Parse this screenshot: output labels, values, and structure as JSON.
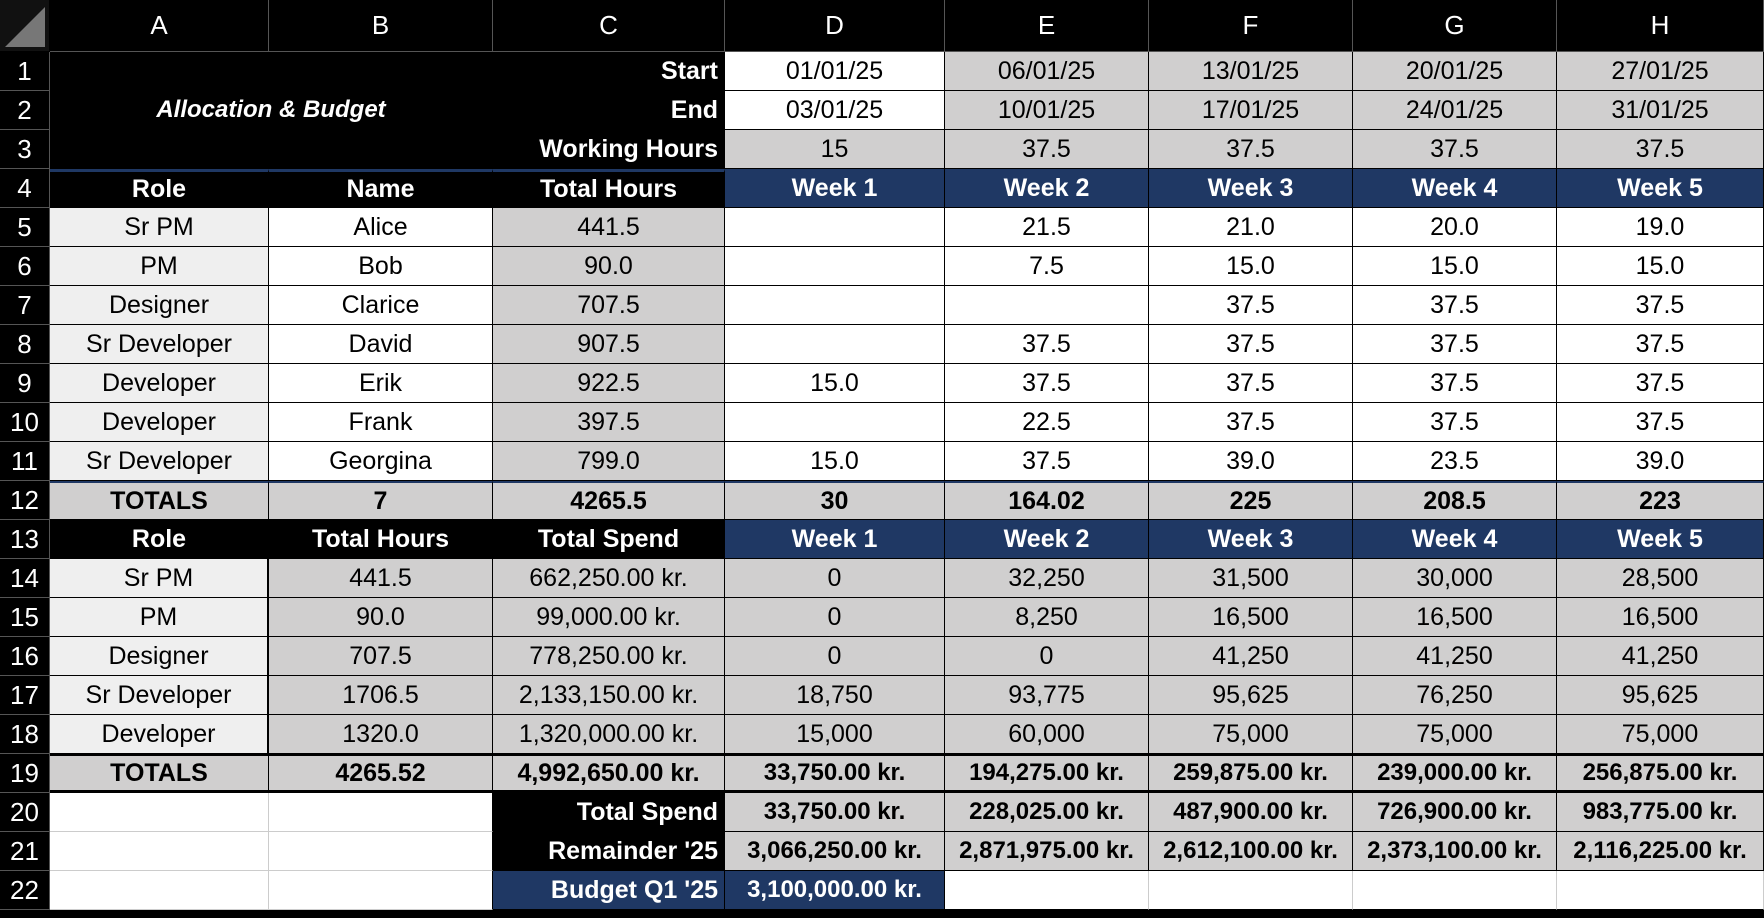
{
  "columns": [
    "A",
    "B",
    "C",
    "D",
    "E",
    "F",
    "G",
    "H"
  ],
  "rows": [
    "1",
    "2",
    "3",
    "4",
    "5",
    "6",
    "7",
    "8",
    "9",
    "10",
    "11",
    "12",
    "13",
    "14",
    "15",
    "16",
    "17",
    "18",
    "19",
    "20",
    "21",
    "22"
  ],
  "title": "Allocation & Budget",
  "labels": {
    "start": "Start",
    "end": "End",
    "working_hours": "Working Hours",
    "total_spend": "Total Spend",
    "remainder": "Remainder '25",
    "budget": "Budget Q1 '25"
  },
  "starts": [
    "01/01/25",
    "06/01/25",
    "13/01/25",
    "20/01/25",
    "27/01/25"
  ],
  "ends": [
    "03/01/25",
    "10/01/25",
    "17/01/25",
    "24/01/25",
    "31/01/25"
  ],
  "working_hours": [
    "15",
    "37.5",
    "37.5",
    "37.5",
    "37.5"
  ],
  "weeks": [
    "Week 1",
    "Week 2",
    "Week 3",
    "Week 4",
    "Week 5"
  ],
  "alloc": {
    "headers": [
      "Role",
      "Name",
      "Total Hours"
    ],
    "rows": [
      {
        "role": "Sr PM",
        "name": "Alice",
        "total": "441.5",
        "weeks": [
          "",
          "21.5",
          "21.0",
          "20.0",
          "19.0"
        ]
      },
      {
        "role": "PM",
        "name": "Bob",
        "total": "90.0",
        "weeks": [
          "",
          "7.5",
          "15.0",
          "15.0",
          "15.0"
        ]
      },
      {
        "role": "Designer",
        "name": "Clarice",
        "total": "707.5",
        "weeks": [
          "",
          "",
          "37.5",
          "37.5",
          "37.5"
        ]
      },
      {
        "role": "Sr Developer",
        "name": "David",
        "total": "907.5",
        "weeks": [
          "",
          "37.5",
          "37.5",
          "37.5",
          "37.5"
        ]
      },
      {
        "role": "Developer",
        "name": "Erik",
        "total": "922.5",
        "weeks": [
          "15.0",
          "37.5",
          "37.5",
          "37.5",
          "37.5"
        ]
      },
      {
        "role": "Developer",
        "name": "Frank",
        "total": "397.5",
        "weeks": [
          "",
          "22.5",
          "37.5",
          "37.5",
          "37.5"
        ]
      },
      {
        "role": "Sr Developer",
        "name": "Georgina",
        "total": "799.0",
        "weeks": [
          "15.0",
          "37.5",
          "39.0",
          "23.5",
          "39.0"
        ]
      }
    ],
    "totals": {
      "label": "TOTALS",
      "count": "7",
      "hours": "4265.5",
      "weeks": [
        "30",
        "164.02",
        "225",
        "208.5",
        "223"
      ]
    }
  },
  "budget": {
    "headers": [
      "Role",
      "Total Hours",
      "Total Spend"
    ],
    "rows": [
      {
        "role": "Sr PM",
        "hours": "441.5",
        "spend": "662,250.00 kr.",
        "weeks": [
          "0",
          "32,250",
          "31,500",
          "30,000",
          "28,500"
        ]
      },
      {
        "role": "PM",
        "hours": "90.0",
        "spend": "99,000.00 kr.",
        "weeks": [
          "0",
          "8,250",
          "16,500",
          "16,500",
          "16,500"
        ]
      },
      {
        "role": "Designer",
        "hours": "707.5",
        "spend": "778,250.00 kr.",
        "weeks": [
          "0",
          "0",
          "41,250",
          "41,250",
          "41,250"
        ]
      },
      {
        "role": "Sr Developer",
        "hours": "1706.5",
        "spend": "2,133,150.00 kr.",
        "weeks": [
          "18,750",
          "93,775",
          "95,625",
          "76,250",
          "95,625"
        ]
      },
      {
        "role": "Developer",
        "hours": "1320.0",
        "spend": "1,320,000.00 kr.",
        "weeks": [
          "15,000",
          "60,000",
          "75,000",
          "75,000",
          "75,000"
        ]
      }
    ],
    "totals": {
      "label": "TOTALS",
      "hours": "4265.52",
      "spend": "4,992,650.00 kr.",
      "weeks": [
        "33,750.00 kr.",
        "194,275.00 kr.",
        "259,875.00 kr.",
        "239,000.00 kr.",
        "256,875.00 kr."
      ]
    }
  },
  "cumulative_spend": [
    "33,750.00 kr.",
    "228,025.00 kr.",
    "487,900.00 kr.",
    "726,900.00 kr.",
    "983,775.00 kr."
  ],
  "remainder": [
    "3,066,250.00 kr.",
    "2,871,975.00 kr.",
    "2,612,100.00 kr.",
    "2,373,100.00 kr.",
    "2,116,225.00 kr."
  ],
  "budget_q1": "3,100,000.00 kr."
}
